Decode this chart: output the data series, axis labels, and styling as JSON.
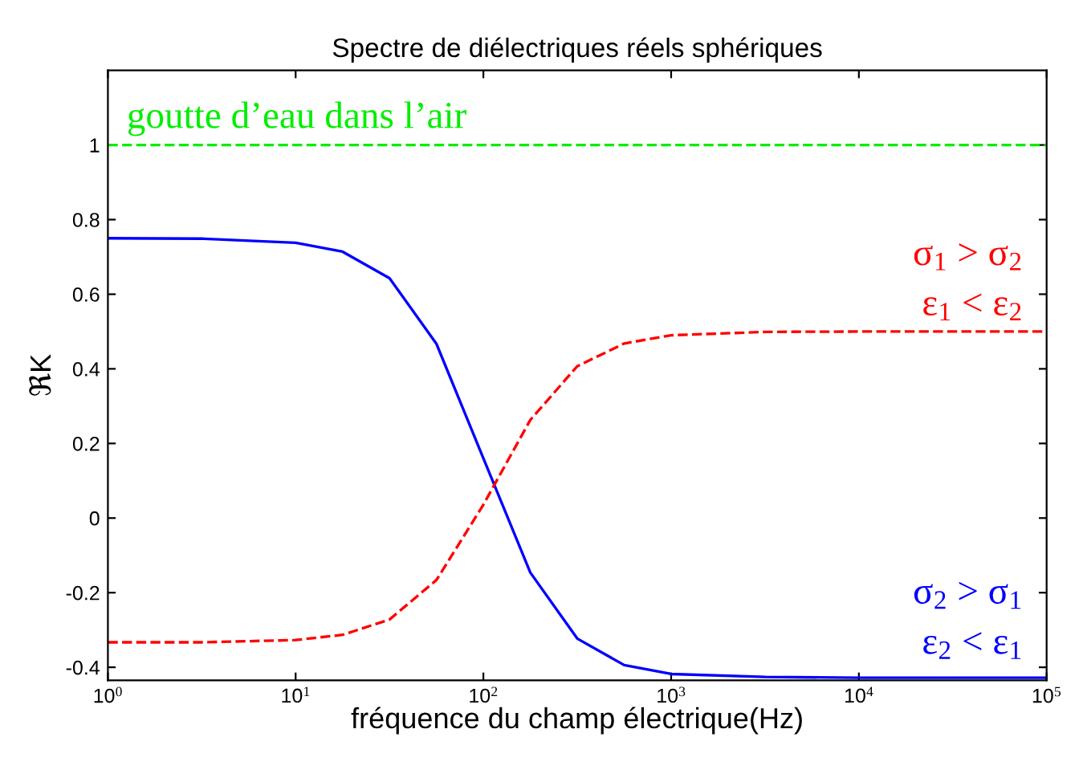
{
  "chart_data": {
    "type": "line",
    "title": "Spectre de diélectriques réels sphériques",
    "xlabel": "fréquence du champ électrique(Hz)",
    "ylabel": "ℜK",
    "log": "x",
    "xlim": [
      1,
      100000
    ],
    "xticks": [
      {
        "value": 1,
        "label": "10$^{0}$"
      },
      {
        "value": 10,
        "label": "10$^{1}$"
      },
      {
        "value": 100,
        "label": "10$^{2}$"
      },
      {
        "value": 1000,
        "label": "10$^{3}$"
      },
      {
        "value": 10000,
        "label": "10$^{4}$"
      },
      {
        "value": 100000,
        "label": "10$^{5}$"
      }
    ],
    "ylim": [
      -0.435,
      1.2
    ],
    "yticks": [
      -0.4,
      -0.2,
      0,
      0.2,
      0.4,
      0.6,
      0.8,
      1
    ],
    "x": [
      1,
      3.162,
      10,
      17.78,
      31.62,
      56.23,
      100,
      177.8,
      316.2,
      562.3,
      1000,
      3162,
      10000,
      100000
    ],
    "series": [
      {
        "name": "σ$_{2}$ > σ$_{1}$\nε$_{2}$ < ε$_{1}$",
        "color": "#0000ff",
        "line_style": "solid",
        "values": [
          0.75,
          0.749,
          0.738,
          0.714,
          0.643,
          0.467,
          0.16,
          -0.146,
          -0.323,
          -0.394,
          -0.418,
          -0.426,
          -0.428,
          -0.428
        ]
      },
      {
        "name": "σ$_{1}$ > σ$_{2}$\nε$_{1}$ < ε$_{2}$",
        "color": "#ff0000",
        "line_style": "dashed",
        "values": [
          -0.333,
          -0.333,
          -0.327,
          -0.313,
          -0.272,
          -0.166,
          0.036,
          0.263,
          0.407,
          0.468,
          0.49,
          0.499,
          0.5,
          0.5
        ]
      }
    ],
    "ref_lines": [
      {
        "axis": "y",
        "value": 1,
        "color": "#00ee00",
        "line_style": "dashed",
        "label": "goutte d’eau dans l’air"
      }
    ],
    "grid": false,
    "legend": false
  }
}
